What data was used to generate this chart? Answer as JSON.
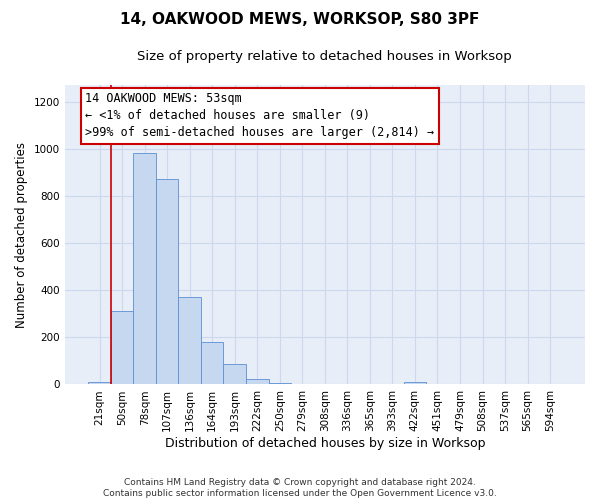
{
  "title": "14, OAKWOOD MEWS, WORKSOP, S80 3PF",
  "subtitle": "Size of property relative to detached houses in Worksop",
  "xlabel": "Distribution of detached houses by size in Worksop",
  "ylabel": "Number of detached properties",
  "bar_labels": [
    "21sqm",
    "50sqm",
    "78sqm",
    "107sqm",
    "136sqm",
    "164sqm",
    "193sqm",
    "222sqm",
    "250sqm",
    "279sqm",
    "308sqm",
    "336sqm",
    "365sqm",
    "393sqm",
    "422sqm",
    "451sqm",
    "479sqm",
    "508sqm",
    "537sqm",
    "565sqm",
    "594sqm"
  ],
  "bar_values": [
    10,
    310,
    980,
    870,
    370,
    180,
    85,
    25,
    5,
    0,
    0,
    0,
    0,
    0,
    10,
    0,
    0,
    0,
    0,
    0,
    0
  ],
  "bar_color": "#c5d8f0",
  "bar_edge_color": "#5b8fd4",
  "bar_width": 1.0,
  "ylim": [
    0,
    1270
  ],
  "yticks": [
    0,
    200,
    400,
    600,
    800,
    1000,
    1200
  ],
  "annotation_line1": "14 OAKWOOD MEWS: 53sqm",
  "annotation_line2": "← <1% of detached houses are smaller (9)",
  "annotation_line3": ">99% of semi-detached houses are larger (2,814) →",
  "annotation_box_color": "#ffffff",
  "annotation_box_edge": "#cc0000",
  "red_line_color": "#cc0000",
  "grid_color": "#ccd8ec",
  "background_color": "#e8eef8",
  "footer_text": "Contains HM Land Registry data © Crown copyright and database right 2024.\nContains public sector information licensed under the Open Government Licence v3.0.",
  "title_fontsize": 11,
  "subtitle_fontsize": 9.5,
  "xlabel_fontsize": 9,
  "ylabel_fontsize": 8.5,
  "tick_fontsize": 7.5,
  "annotation_fontsize": 8.5,
  "footer_fontsize": 6.5
}
